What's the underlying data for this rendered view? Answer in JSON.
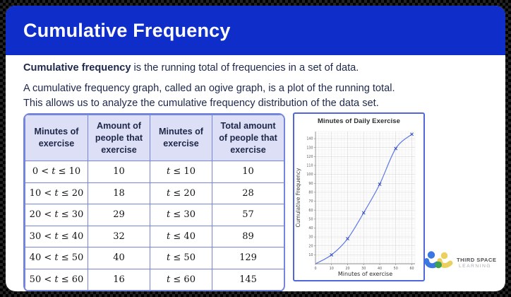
{
  "header": {
    "title": "Cumulative Frequency",
    "bg_color": "#0e2dc9"
  },
  "intro": {
    "p1_bold": "Cumulative frequency",
    "p1_rest": " is the running total of frequencies in a set of data.",
    "p2_line1": "A cumulative frequency graph, called an ogive graph, is a plot of the running total.",
    "p2_line2": "This allows us to analyze the cumulative frequency distribution of the data set."
  },
  "table": {
    "headers": [
      "Minutes of exercise",
      "Amount of people that exercise",
      "Minutes of exercise",
      "Total amount of people that exercise"
    ],
    "rows": [
      [
        "0 < t ≤ 10",
        "10",
        "t ≤ 10",
        "10"
      ],
      [
        "10 < t ≤ 20",
        "18",
        "t ≤ 20",
        "28"
      ],
      [
        "20 < t ≤ 30",
        "29",
        "t ≤ 30",
        "57"
      ],
      [
        "30 < t ≤ 40",
        "32",
        "t ≤ 40",
        "89"
      ],
      [
        "40 < t ≤ 50",
        "40",
        "t ≤ 50",
        "129"
      ],
      [
        "50 < t ≤ 60",
        "16",
        "t ≤ 60",
        "145"
      ]
    ]
  },
  "chart_data": {
    "type": "line",
    "title": "Minutes of Daily Exercise",
    "xlabel": "Minutes of exercise",
    "ylabel": "Cumulative Frequency",
    "x": [
      0,
      10,
      20,
      30,
      40,
      50,
      60
    ],
    "y": [
      0,
      10,
      28,
      57,
      89,
      129,
      145
    ],
    "xlim": [
      0,
      62
    ],
    "ylim": [
      0,
      148
    ],
    "x_ticks": [
      0,
      10,
      20,
      30,
      40,
      50,
      60
    ],
    "y_ticks": [
      10,
      20,
      30,
      40,
      50,
      60,
      70,
      80,
      90,
      100,
      110,
      120,
      130,
      140
    ],
    "minor_step": 2,
    "grid": true,
    "legend": false,
    "marker": "x",
    "line_color": "#5d79e6",
    "marker_color": "#2f48c5"
  },
  "logo": {
    "line1": "THIRD SPACE",
    "line2": "LEARNING",
    "colors": {
      "blue": "#3b77e0",
      "yellow": "#ecd05e",
      "green": "#3da04f"
    }
  }
}
